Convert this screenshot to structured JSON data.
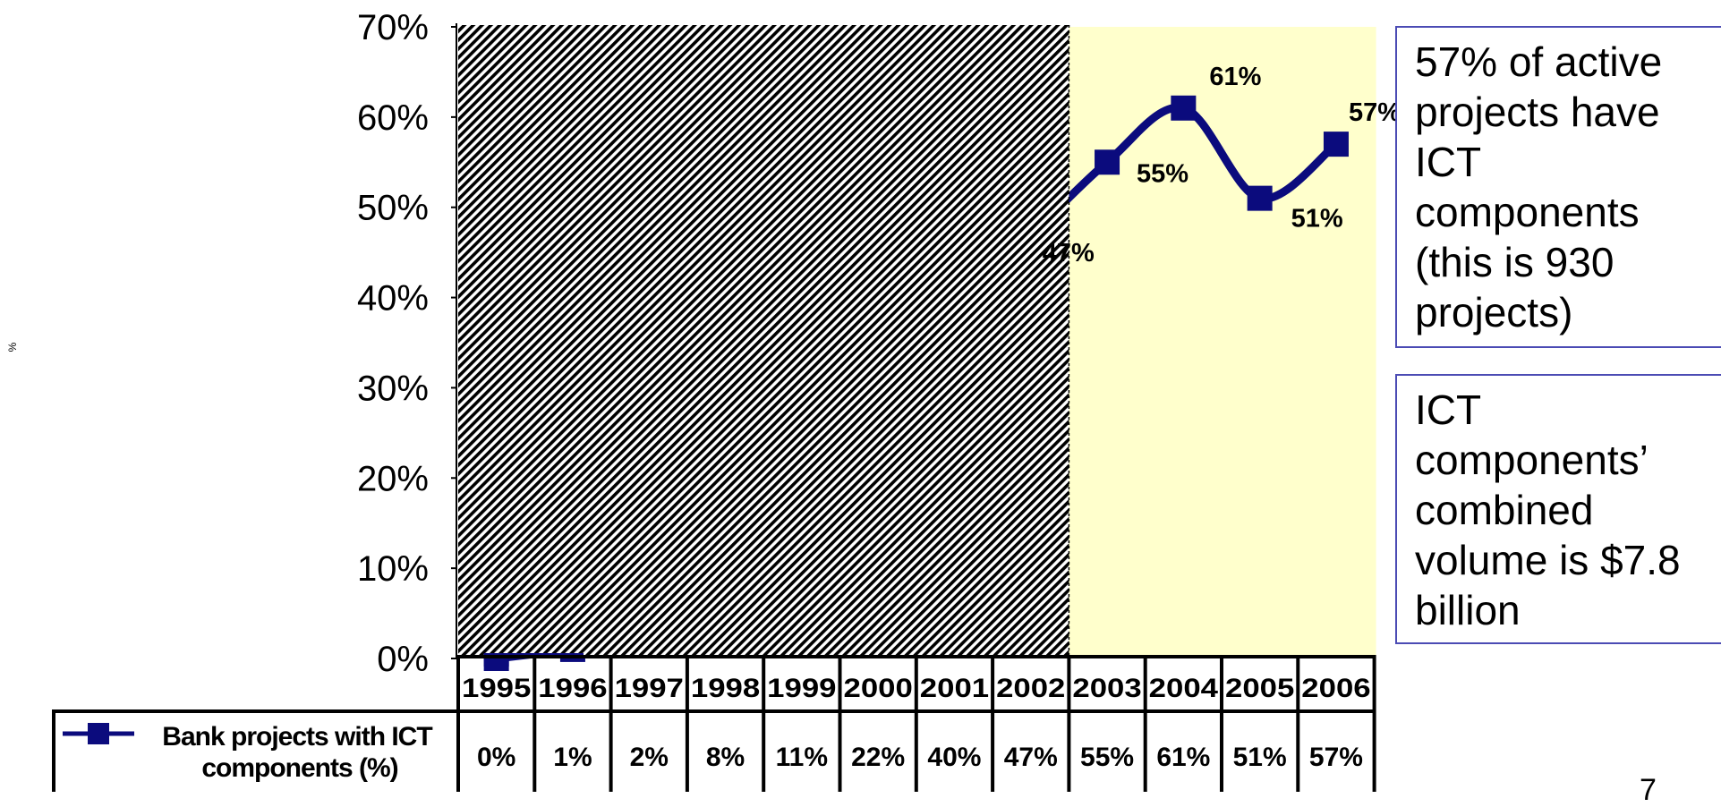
{
  "chart_data": {
    "type": "line",
    "title": "",
    "xlabel": "",
    "ylabel": "%",
    "ylim": [
      0,
      70
    ],
    "yticks": [
      "0%",
      "10%",
      "20%",
      "30%",
      "40%",
      "50%",
      "60%",
      "70%"
    ],
    "categories": [
      "1995",
      "1996",
      "1997",
      "1998",
      "1999",
      "2000",
      "2001",
      "2002",
      "2003",
      "2004",
      "2005",
      "2006"
    ],
    "series": [
      {
        "name": "Bank projects with ICT components (%)",
        "values": [
          0,
          1,
          2,
          8,
          11,
          22,
          40,
          47,
          55,
          61,
          51,
          57
        ],
        "labels": [
          "0%",
          "1%",
          "2%",
          "8%",
          "11%",
          "22%",
          "40%",
          "47%",
          "55%",
          "61%",
          "51%",
          "57%"
        ],
        "color": "#0b0b7d",
        "marker": "square",
        "smooth": true
      }
    ],
    "visible_point_labels": {
      "2002": "47%",
      "2003": "55%",
      "2004": "61%",
      "2005": "51%",
      "2006": "57%"
    },
    "hatched_region": {
      "from": "1995",
      "to": "2002",
      "pattern": "diagonal black and white"
    },
    "highlight_region": {
      "from": "2003",
      "to": "2006",
      "color": "#ffffcc"
    },
    "grid": false,
    "legend": "data table below chart"
  },
  "notes": [
    "57% of active projects have ICT components (this is 930 projects)",
    "ICT components’ combined volume is $7.8 billion"
  ],
  "page_number": "7"
}
